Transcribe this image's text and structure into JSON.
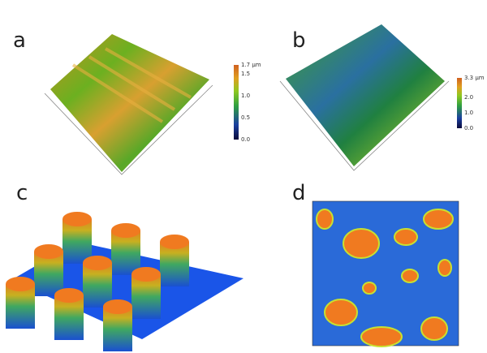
{
  "panels": [
    {
      "label": "a",
      "colorbar": {
        "ticks": [
          "1.7 µm",
          "1.5",
          "1.0",
          "0.5",
          "0.0"
        ]
      }
    },
    {
      "label": "b",
      "colorbar": {
        "ticks": [
          "3.3 µm",
          "2.0",
          "1.0",
          "0.0"
        ]
      }
    },
    {
      "label": "c"
    },
    {
      "label": "d"
    }
  ]
}
